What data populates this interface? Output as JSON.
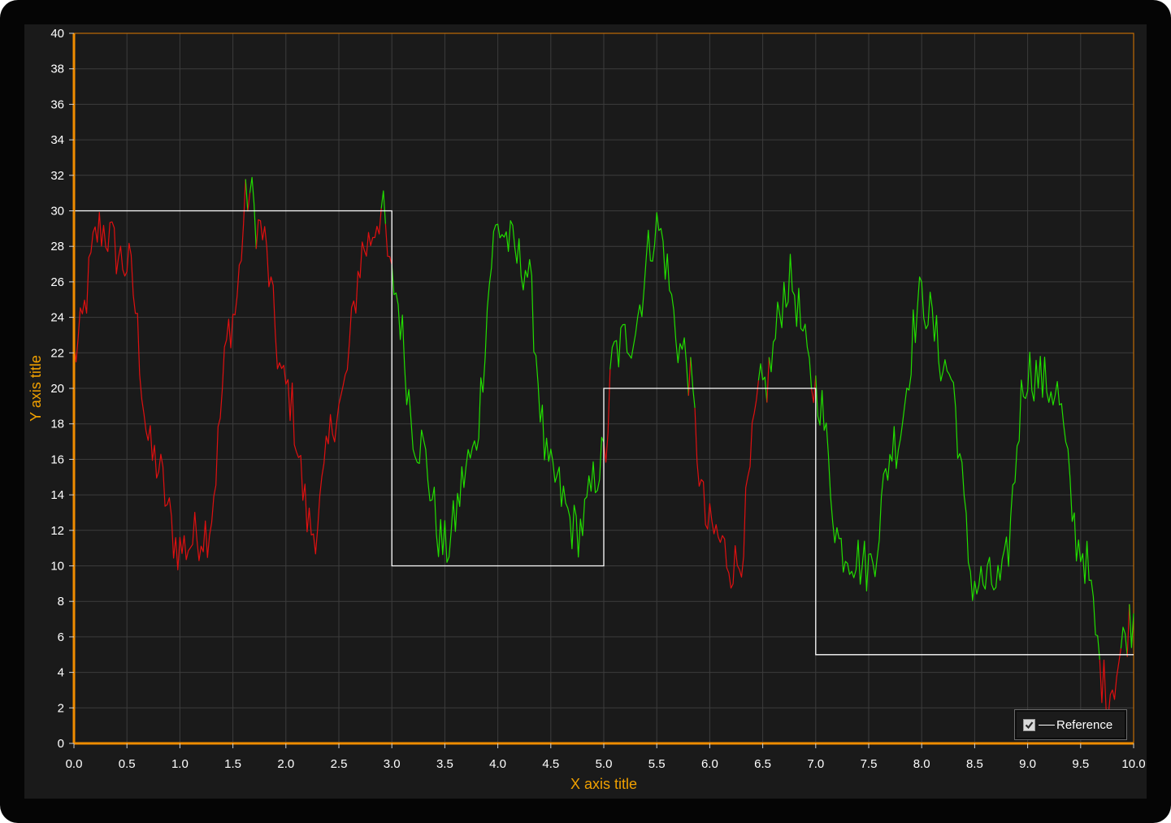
{
  "chart_data": {
    "type": "line",
    "xlabel": "X axis title",
    "ylabel": "Y axis title",
    "xlim": [
      0,
      10
    ],
    "ylim": [
      0,
      40
    ],
    "x_ticks": [
      "0.0",
      "0.5",
      "1.0",
      "1.5",
      "2.0",
      "2.5",
      "3.0",
      "3.5",
      "4.0",
      "4.5",
      "5.0",
      "5.5",
      "6.0",
      "6.5",
      "7.0",
      "7.5",
      "8.0",
      "8.5",
      "9.0",
      "9.5",
      "10.0"
    ],
    "y_ticks": [
      "0",
      "2",
      "4",
      "6",
      "8",
      "10",
      "12",
      "14",
      "16",
      "18",
      "20",
      "22",
      "24",
      "26",
      "28",
      "30",
      "32",
      "34",
      "36",
      "38",
      "40"
    ],
    "grid": true,
    "legend": {
      "position": "bottom-right",
      "entries": [
        {
          "label": "Reference",
          "checked": true
        }
      ]
    },
    "series": [
      {
        "name": "Reference",
        "kind": "step",
        "color": "#ffffff",
        "points": [
          [
            0,
            30
          ],
          [
            3,
            30
          ],
          [
            3,
            10
          ],
          [
            5,
            10
          ],
          [
            5,
            20
          ],
          [
            7,
            20
          ],
          [
            7,
            5
          ],
          [
            10,
            5
          ]
        ]
      },
      {
        "kind": "noisy-signal",
        "color_above_reference": "#22dd00",
        "color_below_reference": "#e01010",
        "x": [
          0,
          0.25,
          0.5,
          0.75,
          1.0,
          1.25,
          1.5,
          1.65,
          1.75,
          2.0,
          2.25,
          2.5,
          2.75,
          2.9,
          3.0,
          3.25,
          3.5,
          3.75,
          4.0,
          4.25,
          4.5,
          4.75,
          5.0,
          5.1,
          5.25,
          5.5,
          5.75,
          6.0,
          6.25,
          6.5,
          6.75,
          7.0,
          7.25,
          7.5,
          7.75,
          8.0,
          8.25,
          8.5,
          8.75,
          9.0,
          9.25,
          9.5,
          9.75,
          10.0
        ],
        "y": [
          22,
          29,
          27,
          16,
          11,
          12,
          24,
          31,
          29,
          20,
          12,
          19,
          28,
          30,
          26,
          17,
          11,
          16,
          29,
          27,
          15,
          12,
          16,
          22,
          23,
          29,
          22,
          12,
          10,
          20,
          26,
          20,
          11,
          10,
          17,
          25,
          21,
          9,
          9,
          21,
          20,
          11,
          3,
          7
        ]
      }
    ]
  }
}
